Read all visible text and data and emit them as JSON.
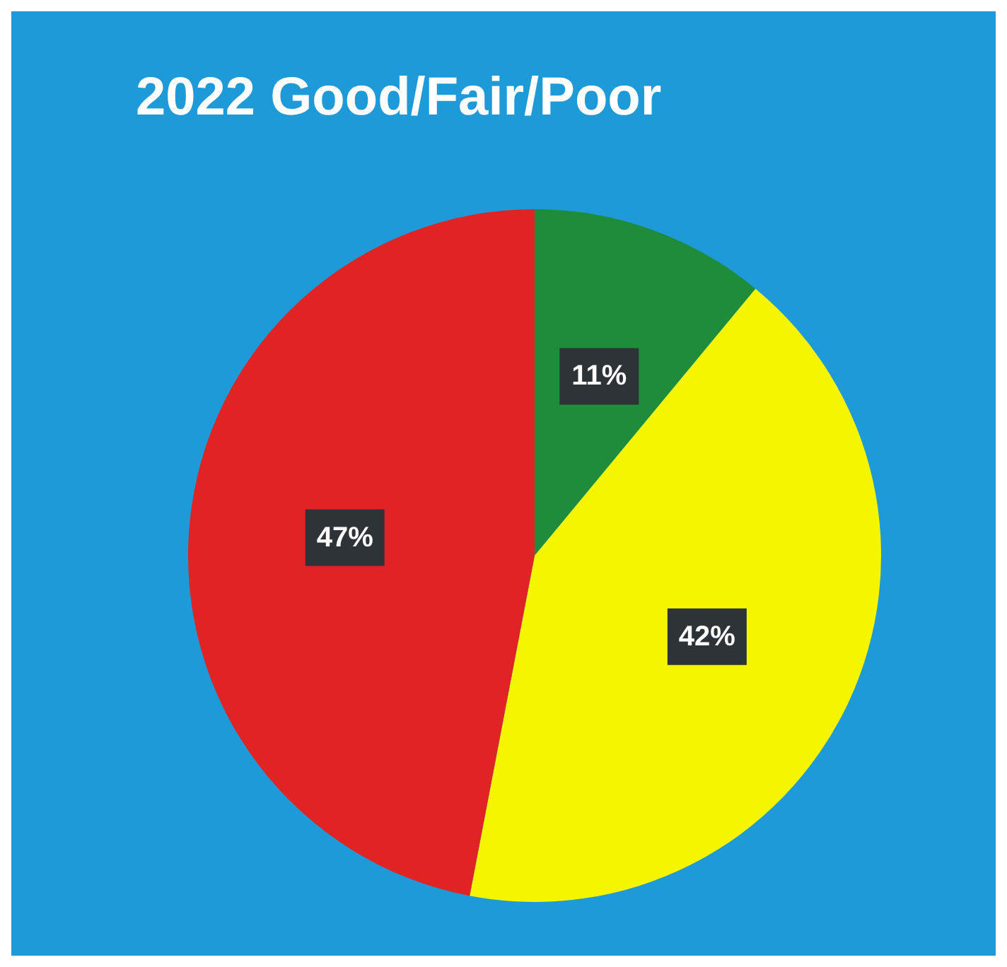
{
  "chart_data": {
    "type": "pie",
    "title": "2022 Good/Fair/Poor",
    "categories": [
      null,
      null,
      null
    ],
    "values": [
      11,
      42,
      47
    ],
    "value_labels": [
      "11%",
      "42%",
      "47%"
    ],
    "colors": [
      "#1e8c3a",
      "#f5f500",
      "#e02424"
    ],
    "legend": false
  }
}
